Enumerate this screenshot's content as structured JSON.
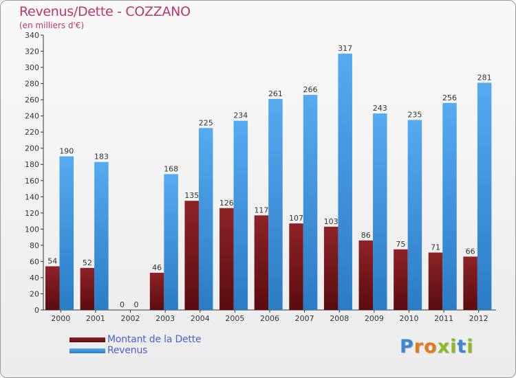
{
  "header": {
    "title": "Revenus/Dette - COZZANO",
    "subtitle": "(en milliers d'€)"
  },
  "legend": {
    "debt_label": "Montant de la Dette",
    "revenue_label": "Revenus"
  },
  "logo": {
    "text": "Proxiti"
  },
  "colors": {
    "debt": "#7a1418",
    "revenue": "#3d95dd",
    "title": "#c0346c",
    "legend_text": "#4a63d0"
  },
  "chart_data": {
    "type": "bar",
    "categories": [
      "2000",
      "2001",
      "2002",
      "2003",
      "2004",
      "2005",
      "2006",
      "2007",
      "2008",
      "2009",
      "2010",
      "2011",
      "2012"
    ],
    "series": [
      {
        "name": "Montant de la Dette",
        "values": [
          54,
          52,
          0,
          46,
          135,
          126,
          117,
          107,
          103,
          86,
          75,
          71,
          66
        ]
      },
      {
        "name": "Revenus",
        "values": [
          190,
          183,
          0,
          168,
          225,
          234,
          261,
          266,
          317,
          243,
          235,
          256,
          281
        ]
      }
    ],
    "ylim": [
      0,
      340
    ],
    "ytick_step": 20,
    "grid": false,
    "legend_position": "bottom-left"
  }
}
